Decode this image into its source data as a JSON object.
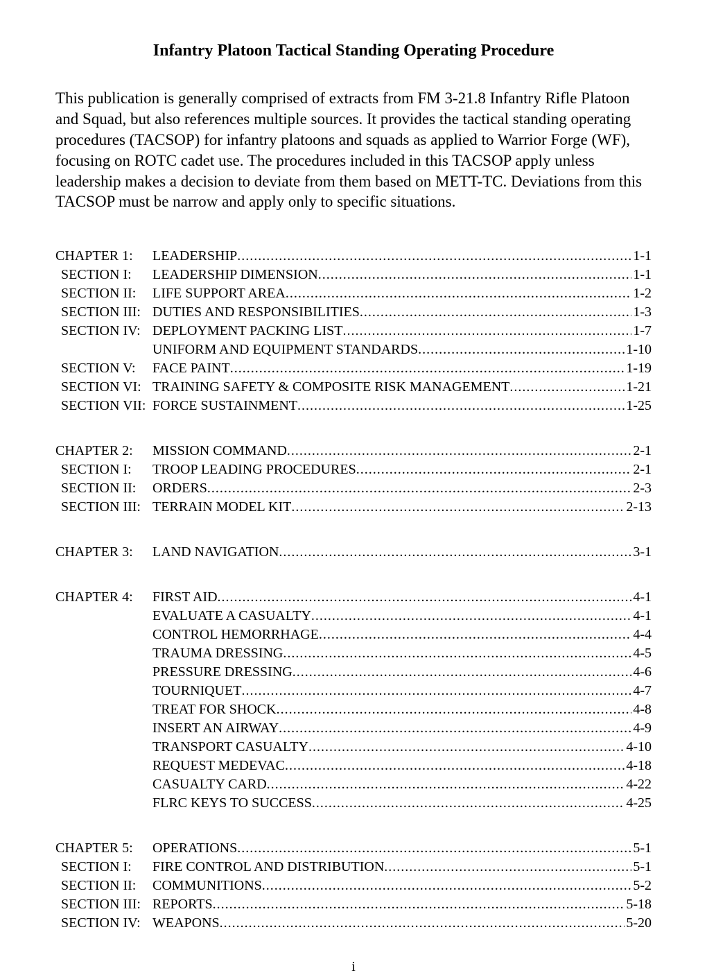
{
  "title": "Infantry Platoon Tactical Standing Operating Procedure",
  "intro": "This publication is generally comprised of extracts from FM 3-21.8 Infantry Rifle Platoon and Squad, but also references multiple sources.  It provides the tactical standing operating procedures (TACSOP) for infantry platoons and squads as applied to Warrior Forge (WF), focusing on ROTC cadet use.  The procedures included in this TACSOP apply unless leadership makes a decision to deviate from them based on METT-TC. Deviations from this TACSOP must be narrow and apply only to specific situations.",
  "pageNumber": "i",
  "toc": [
    {
      "entries": [
        {
          "label": "CHAPTER 1:",
          "title": "LEADERSHIP",
          "page": "1-1",
          "indent": 0
        },
        {
          "label": "SECTION I:",
          "title": "LEADERSHIP DIMENSION",
          "page": "1-1",
          "indent": 1
        },
        {
          "label": "SECTION II:",
          "title": "LIFE SUPPORT AREA",
          "page": "1-2",
          "indent": 1
        },
        {
          "label": "SECTION III:",
          "title": "DUTIES AND RESPONSIBILITIES",
          "page": "1-3",
          "indent": 1
        },
        {
          "label": "SECTION IV:",
          "title": "DEPLOYMENT PACKING LIST",
          "page": "1-7",
          "indent": 1
        },
        {
          "label": "",
          "title": "UNIFORM AND EQUIPMENT STANDARDS",
          "page": "1-10",
          "indent": 1
        },
        {
          "label": "SECTION V:",
          "title": "FACE PAINT",
          "page": "1-19",
          "indent": 1
        },
        {
          "label": "SECTION VI:",
          "title": "TRAINING SAFETY & COMPOSITE RISK MANAGEMENT",
          "page": "1-21",
          "indent": 1
        },
        {
          "label": "SECTION VII:",
          "title": "FORCE SUSTAINMENT",
          "page": "1-25",
          "indent": 1
        }
      ]
    },
    {
      "entries": [
        {
          "label": "CHAPTER 2:",
          "title": "MISSION COMMAND",
          "page": "2-1",
          "indent": 0
        },
        {
          "label": "SECTION I:",
          "title": "TROOP LEADING PROCEDURES",
          "page": "2-1",
          "indent": 1
        },
        {
          "label": "SECTION II:",
          "title": "ORDERS",
          "page": "2-3",
          "indent": 1
        },
        {
          "label": "SECTION III:",
          "title": "TERRAIN MODEL KIT",
          "page": "2-13",
          "indent": 1
        }
      ]
    },
    {
      "entries": [
        {
          "label": "CHAPTER 3:",
          "title": "LAND NAVIGATION",
          "page": "3-1",
          "indent": 0
        }
      ]
    },
    {
      "entries": [
        {
          "label": "CHAPTER 4:",
          "title": "FIRST AID",
          "page": "4-1",
          "indent": 0
        },
        {
          "label": "",
          "title": "EVALUATE A CASUALTY",
          "page": "4-1",
          "indent": 1
        },
        {
          "label": "",
          "title": "CONTROL HEMORRHAGE",
          "page": "4-4",
          "indent": 1
        },
        {
          "label": "",
          "title": "TRAUMA DRESSING",
          "page": "4-5",
          "indent": 1
        },
        {
          "label": "",
          "title": "PRESSURE DRESSING",
          "page": "4-6",
          "indent": 1
        },
        {
          "label": "",
          "title": "TOURNIQUET",
          "page": "4-7",
          "indent": 1
        },
        {
          "label": "",
          "title": "TREAT FOR SHOCK",
          "page": "4-8",
          "indent": 1
        },
        {
          "label": "",
          "title": "INSERT AN AIRWAY",
          "page": "4-9",
          "indent": 1
        },
        {
          "label": "",
          "title": "TRANSPORT CASUALTY",
          "page": "4-10",
          "indent": 1
        },
        {
          "label": "",
          "title": "REQUEST MEDEVAC",
          "page": "4-18",
          "indent": 1
        },
        {
          "label": "",
          "title": "CASUALTY CARD",
          "page": "4-22",
          "indent": 1
        },
        {
          "label": "",
          "title": "FLRC KEYS TO SUCCESS",
          "page": "4-25",
          "indent": 1
        }
      ]
    },
    {
      "entries": [
        {
          "label": "CHAPTER 5:",
          "title": "OPERATIONS",
          "page": "5-1",
          "indent": 0
        },
        {
          "label": "SECTION I:",
          "title": "FIRE CONTROL AND DISTRIBUTION",
          "page": "5-1",
          "indent": 1
        },
        {
          "label": "SECTION II:",
          "title": "COMMUNITIONS",
          "page": "5-2",
          "indent": 1
        },
        {
          "label": "SECTION III:",
          "title": "REPORTS",
          "page": "5-18",
          "indent": 1
        },
        {
          "label": "SECTION IV:",
          "title": "WEAPONS",
          "page": "5-20",
          "indent": 1
        }
      ]
    }
  ]
}
